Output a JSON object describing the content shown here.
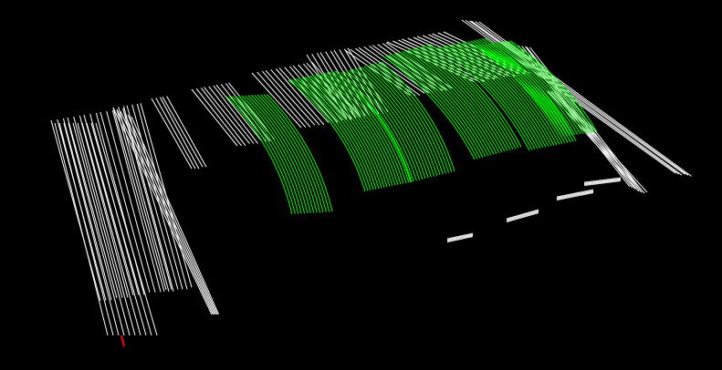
{
  "scene": {
    "background_color": "#000000",
    "scan_color": "#ffffff",
    "highlight_color": "#00ff00",
    "marker_color": "#ff0000"
  }
}
